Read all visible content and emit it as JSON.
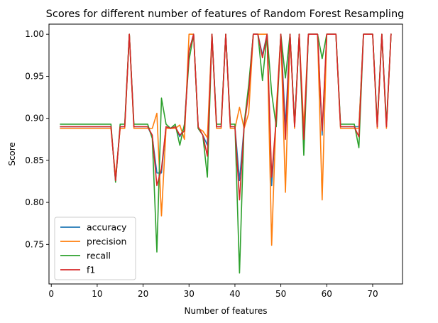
{
  "chart_data": {
    "type": "line",
    "title": "Scores for different number of features of Random Forest Resampling",
    "xlabel": "Number of features",
    "ylabel": "Score",
    "xlim": [
      -0.5,
      76.5
    ],
    "ylim": [
      0.703,
      1.012
    ],
    "xticks": [
      0,
      10,
      20,
      30,
      40,
      50,
      60,
      70
    ],
    "yticks": [
      0.75,
      0.8,
      0.85,
      0.9,
      0.95,
      1.0
    ],
    "ytick_labels": [
      "0.75",
      "0.80",
      "0.85",
      "0.90",
      "0.95",
      "1.00"
    ],
    "grid": false,
    "legend_position": "lower-left",
    "x": [
      2,
      3,
      4,
      5,
      6,
      7,
      8,
      9,
      10,
      11,
      12,
      13,
      14,
      15,
      16,
      17,
      18,
      19,
      20,
      21,
      22,
      23,
      24,
      25,
      26,
      27,
      28,
      29,
      30,
      31,
      32,
      33,
      34,
      35,
      36,
      37,
      38,
      39,
      40,
      41,
      42,
      43,
      44,
      45,
      46,
      47,
      48,
      49,
      50,
      51,
      52,
      53,
      54,
      55,
      56,
      57,
      58,
      59,
      60,
      61,
      62,
      63,
      64,
      65,
      66,
      67,
      68,
      69,
      70,
      71,
      72,
      73,
      74
    ],
    "series": [
      {
        "name": "accuracy",
        "color": "#1f77b4",
        "values": [
          0.89,
          0.89,
          0.89,
          0.89,
          0.89,
          0.89,
          0.89,
          0.89,
          0.89,
          0.89,
          0.89,
          0.89,
          0.826,
          0.89,
          0.89,
          1.0,
          0.89,
          0.89,
          0.89,
          0.89,
          0.878,
          0.835,
          0.835,
          0.89,
          0.888,
          0.89,
          0.878,
          0.89,
          0.98,
          1.0,
          0.888,
          0.88,
          0.868,
          1.0,
          0.89,
          0.89,
          1.0,
          0.89,
          0.89,
          0.826,
          0.89,
          0.935,
          1.0,
          1.0,
          0.975,
          1.0,
          0.82,
          0.9,
          1.0,
          0.89,
          1.0,
          0.89,
          1.0,
          0.87,
          1.0,
          1.0,
          1.0,
          0.88,
          1.0,
          1.0,
          1.0,
          0.89,
          0.89,
          0.89,
          0.89,
          0.89,
          1.0,
          1.0,
          1.0,
          0.89,
          1.0,
          0.89,
          1.0
        ]
      },
      {
        "name": "precision",
        "color": "#ff7f0e",
        "values": [
          0.888,
          0.888,
          0.888,
          0.888,
          0.888,
          0.888,
          0.888,
          0.888,
          0.888,
          0.888,
          0.888,
          0.888,
          0.83,
          0.888,
          0.888,
          1.0,
          0.888,
          0.888,
          0.888,
          0.888,
          0.888,
          0.906,
          0.784,
          0.888,
          0.888,
          0.888,
          0.892,
          0.875,
          1.0,
          1.0,
          0.888,
          0.885,
          0.877,
          1.0,
          0.888,
          0.888,
          1.0,
          0.888,
          0.888,
          0.913,
          0.888,
          0.906,
          1.0,
          1.0,
          1.0,
          1.0,
          0.749,
          0.91,
          1.0,
          0.812,
          1.0,
          0.888,
          1.0,
          0.888,
          1.0,
          1.0,
          1.0,
          0.803,
          1.0,
          1.0,
          1.0,
          0.888,
          0.888,
          0.888,
          0.888,
          0.888,
          1.0,
          1.0,
          1.0,
          0.888,
          1.0,
          0.888,
          1.0
        ]
      },
      {
        "name": "recall",
        "color": "#2ca02c",
        "values": [
          0.893,
          0.893,
          0.893,
          0.893,
          0.893,
          0.893,
          0.893,
          0.893,
          0.893,
          0.893,
          0.893,
          0.893,
          0.824,
          0.893,
          0.893,
          1.0,
          0.893,
          0.893,
          0.893,
          0.893,
          0.876,
          0.741,
          0.924,
          0.893,
          0.888,
          0.893,
          0.868,
          0.893,
          0.969,
          1.0,
          0.888,
          0.88,
          0.83,
          1.0,
          0.893,
          0.893,
          1.0,
          0.893,
          0.893,
          0.716,
          0.893,
          0.94,
          1.0,
          1.0,
          0.945,
          1.0,
          0.93,
          0.89,
          1.0,
          0.948,
          1.0,
          0.893,
          1.0,
          0.856,
          1.0,
          1.0,
          1.0,
          0.971,
          1.0,
          1.0,
          1.0,
          0.893,
          0.893,
          0.893,
          0.893,
          0.865,
          1.0,
          1.0,
          1.0,
          0.893,
          1.0,
          0.893,
          1.0
        ]
      },
      {
        "name": "f1",
        "color": "#d62728",
        "values": [
          0.89,
          0.89,
          0.89,
          0.89,
          0.89,
          0.89,
          0.89,
          0.89,
          0.89,
          0.89,
          0.89,
          0.89,
          0.826,
          0.89,
          0.89,
          1.0,
          0.89,
          0.89,
          0.89,
          0.89,
          0.88,
          0.82,
          0.84,
          0.89,
          0.888,
          0.89,
          0.88,
          0.885,
          0.98,
          1.0,
          0.89,
          0.88,
          0.855,
          1.0,
          0.89,
          0.89,
          1.0,
          0.89,
          0.89,
          0.803,
          0.89,
          0.93,
          1.0,
          1.0,
          0.972,
          1.0,
          0.83,
          0.9,
          1.0,
          0.875,
          1.0,
          0.89,
          1.0,
          0.875,
          1.0,
          1.0,
          1.0,
          0.885,
          1.0,
          1.0,
          1.0,
          0.89,
          0.89,
          0.89,
          0.89,
          0.878,
          1.0,
          1.0,
          1.0,
          0.89,
          1.0,
          0.89,
          1.0
        ]
      }
    ]
  }
}
